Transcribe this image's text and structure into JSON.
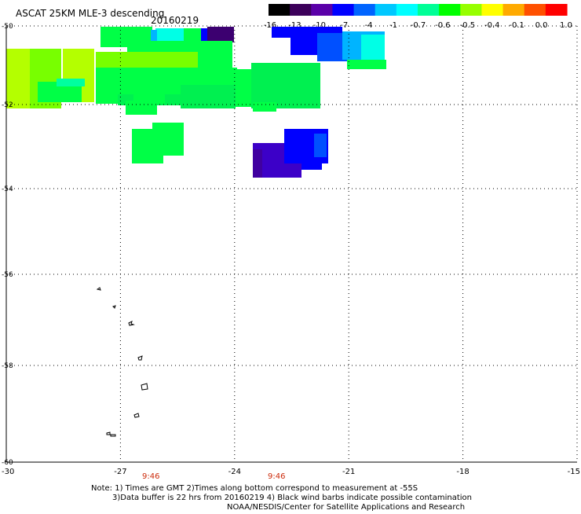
{
  "header": {
    "title": "ASCAT 25KM MLE-3 descending",
    "date": "20160219"
  },
  "colorbar": {
    "labels": [
      "-16",
      "-13",
      "-10",
      "-7",
      "-4",
      "-1",
      "-0.7",
      "-0.6",
      "-0.5",
      "-0.4",
      "-0.1",
      "0.0",
      "1.0"
    ],
    "colors": [
      "#000000",
      "#3c005a",
      "#5a00a8",
      "#0000ff",
      "#0064ff",
      "#00c8ff",
      "#00ffff",
      "#00ff96",
      "#00ff00",
      "#96ff00",
      "#ffff00",
      "#ffaa00",
      "#ff5000",
      "#ff0000"
    ]
  },
  "axes": {
    "lon_ticks": [
      "-30",
      "-27",
      "-24",
      "-21",
      "-18",
      "-15"
    ],
    "lat_ticks": [
      "-50",
      "-52",
      "-54",
      "-56",
      "-58",
      "-60"
    ],
    "time_labels": [
      "9:46",
      "9:46"
    ]
  },
  "notes": [
    "Note: 1) Times are GMT 2)Times along bottom correspond to measurement at -55S",
    "3)Data buffer is 22 hrs from 20160219 4) Black wind barbs indicate possible contamination",
    "NOAA/NESDIS/Center for Satellite Applications and Research"
  ],
  "palette": {
    "green": "#00ff46",
    "green_mid": "#00f050",
    "yellow_green": "#b4ff00",
    "light_green": "#78ff00",
    "teal": "#00ffa0",
    "cyan": "#00ffe6",
    "light_blue": "#00b4ff",
    "blue": "#0000ff",
    "blue_mid": "#0050ff",
    "indigo": "#3c00c8",
    "purple": "#4000a0",
    "dark_purple": "#3c0070"
  }
}
